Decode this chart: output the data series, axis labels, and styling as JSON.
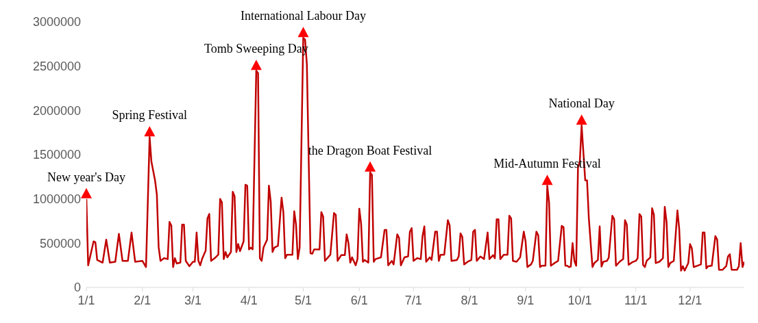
{
  "chart_data": {
    "type": "line",
    "x": [
      "--01-01",
      "--01-02",
      "--01-05",
      "--01-06",
      "--01-07",
      "--01-10",
      "--01-12",
      "--01-14",
      "--01-17",
      "--01-19",
      "--01-21",
      "--01-24",
      "--01-26",
      "--01-28",
      "--02-01",
      "--02-03",
      "--02-05",
      "--02-06",
      "--02-08",
      "--02-09",
      "--02-10",
      "--02-11",
      "--02-13",
      "--02-15",
      "--02-16",
      "--02-17",
      "--02-18",
      "--02-19",
      "--02-20",
      "--02-22",
      "--02-23",
      "--02-24",
      "--02-25",
      "--02-27",
      "--03-01",
      "--03-02",
      "--03-03",
      "--03-04",
      "--03-05",
      "--03-06",
      "--03-08",
      "--03-09",
      "--03-10",
      "--03-11",
      "--03-13",
      "--03-15",
      "--03-16",
      "--03-17",
      "--03-18",
      "--03-19",
      "--03-20",
      "--03-22",
      "--03-23",
      "--03-24",
      "--03-25",
      "--03-26",
      "--03-27",
      "--03-29",
      "--03-30",
      "--03-31",
      "--04-01",
      "--04-02",
      "--04-03",
      "--04-05",
      "--04-06",
      "--04-07",
      "--04-08",
      "--04-09",
      "--04-11",
      "--04-12",
      "--04-13",
      "--04-14",
      "--04-15",
      "--04-17",
      "--04-19",
      "--04-20",
      "--04-21",
      "--04-22",
      "--04-25",
      "--04-26",
      "--04-27",
      "--04-28",
      "--04-29",
      "--05-01",
      "--05-02",
      "--05-03",
      "--05-05",
      "--05-06",
      "--05-07",
      "--05-10",
      "--05-11",
      "--05-12",
      "--05-13",
      "--05-16",
      "--05-18",
      "--05-19",
      "--05-20",
      "--05-22",
      "--05-24",
      "--05-25",
      "--05-26",
      "--05-27",
      "--05-28",
      "--05-30",
      "--05-31",
      "--06-01",
      "--06-02",
      "--06-03",
      "--06-04",
      "--06-06",
      "--06-07",
      "--06-08",
      "--06-09",
      "--06-10",
      "--06-13",
      "--06-15",
      "--06-16",
      "--06-17",
      "--06-19",
      "--06-20",
      "--06-22",
      "--06-23",
      "--06-24",
      "--06-26",
      "--06-28",
      "--06-29",
      "--06-30",
      "--07-01",
      "--07-03",
      "--07-05",
      "--07-06",
      "--07-07",
      "--07-08",
      "--07-10",
      "--07-11",
      "--07-13",
      "--07-14",
      "--07-15",
      "--07-16",
      "--07-18",
      "--07-20",
      "--07-21",
      "--07-22",
      "--07-25",
      "--07-26",
      "--07-27",
      "--07-28",
      "--07-29",
      "--07-31",
      "--08-02",
      "--08-03",
      "--08-04",
      "--08-05",
      "--08-07",
      "--08-09",
      "--08-11",
      "--08-12",
      "--08-14",
      "--08-15",
      "--08-16",
      "--08-17",
      "--08-18",
      "--08-20",
      "--08-22",
      "--08-23",
      "--08-24",
      "--08-25",
      "--08-27",
      "--08-29",
      "--08-31",
      "--09-01",
      "--09-02",
      "--09-04",
      "--09-05",
      "--09-07",
      "--09-08",
      "--09-09",
      "--09-10",
      "--09-12",
      "--09-13",
      "--09-14",
      "--09-15",
      "--09-17",
      "--09-19",
      "--09-21",
      "--09-22",
      "--09-23",
      "--09-24",
      "--09-25",
      "--09-26",
      "--09-27",
      "--09-28",
      "--09-29",
      "--09-30",
      "--10-01",
      "--10-02",
      "--10-04",
      "--10-05",
      "--10-06",
      "--10-08",
      "--10-09",
      "--10-11",
      "--10-12",
      "--10-13",
      "--10-14",
      "--10-16",
      "--10-17",
      "--10-19",
      "--10-20",
      "--10-21",
      "--10-23",
      "--10-25",
      "--10-26",
      "--10-27",
      "--10-28",
      "--10-30",
      "--11-01",
      "--11-02",
      "--11-03",
      "--11-04",
      "--11-05",
      "--11-06",
      "--11-07",
      "--11-09",
      "--11-10",
      "--11-11",
      "--11-12",
      "--11-14",
      "--11-16",
      "--11-17",
      "--11-18",
      "--11-19",
      "--11-20",
      "--11-22",
      "--11-24",
      "--11-25",
      "--11-26",
      "--11-27",
      "--11-28",
      "--11-30",
      "--12-01",
      "--12-02",
      "--12-03",
      "--12-05",
      "--12-07",
      "--12-08",
      "--12-09",
      "--12-10",
      "--12-11",
      "--12-13",
      "--12-15",
      "--12-16",
      "--12-17",
      "--12-19",
      "--12-21",
      "--12-22",
      "--12-23",
      "--12-24",
      "--12-27",
      "--12-28",
      "--12-29",
      "--12-30",
      "--12-31"
    ],
    "series": [
      {
        "color": "#c00000",
        "values": [
          1000000,
          250000,
          520000,
          510000,
          310000,
          280000,
          540000,
          280000,
          290000,
          605000,
          300000,
          300000,
          620000,
          290000,
          300000,
          230000,
          1700000,
          1420000,
          1210000,
          1050000,
          455000,
          300000,
          330000,
          320000,
          740000,
          700000,
          230000,
          330000,
          270000,
          280000,
          710000,
          710000,
          300000,
          240000,
          290000,
          290000,
          620000,
          300000,
          250000,
          320000,
          415000,
          780000,
          830000,
          300000,
          330000,
          370000,
          1000000,
          960000,
          320000,
          400000,
          340000,
          400000,
          1080000,
          1030000,
          400000,
          490000,
          410000,
          520000,
          1160000,
          1150000,
          430000,
          450000,
          430000,
          2450000,
          2420000,
          330000,
          300000,
          450000,
          540000,
          1150000,
          970000,
          400000,
          450000,
          470000,
          1015000,
          850000,
          330000,
          370000,
          370000,
          860000,
          710000,
          320000,
          450000,
          2820000,
          2800000,
          2520000,
          387000,
          380000,
          430000,
          430000,
          850000,
          800000,
          300000,
          370000,
          840000,
          820000,
          300000,
          365000,
          365000,
          600000,
          500000,
          280000,
          340000,
          250000,
          320000,
          890000,
          720000,
          290000,
          310000,
          280000,
          1300000,
          1270000,
          290000,
          320000,
          340000,
          650000,
          650000,
          250000,
          300000,
          260000,
          600000,
          560000,
          250000,
          340000,
          350000,
          630000,
          670000,
          300000,
          330000,
          320000,
          580000,
          690000,
          290000,
          340000,
          310000,
          630000,
          630000,
          300000,
          370000,
          370000,
          760000,
          700000,
          300000,
          310000,
          350000,
          610000,
          570000,
          260000,
          290000,
          310000,
          630000,
          650000,
          300000,
          350000,
          320000,
          620000,
          320000,
          365000,
          330000,
          770000,
          770000,
          320000,
          370000,
          370000,
          810000,
          780000,
          300000,
          290000,
          340000,
          630000,
          520000,
          230000,
          260000,
          300000,
          630000,
          590000,
          230000,
          245000,
          245000,
          1150000,
          960000,
          245000,
          275000,
          300000,
          695000,
          680000,
          245000,
          245000,
          230000,
          235000,
          500000,
          300000,
          245000,
          1355000,
          1420000,
          1830000,
          1210000,
          1210000,
          780000,
          230000,
          275000,
          310000,
          690000,
          235000,
          290000,
          300000,
          335000,
          810000,
          770000,
          245000,
          290000,
          320000,
          760000,
          710000,
          255000,
          285000,
          300000,
          330000,
          830000,
          800000,
          255000,
          230000,
          300000,
          340000,
          895000,
          820000,
          275000,
          290000,
          330000,
          910000,
          740000,
          230000,
          275000,
          300000,
          870000,
          660000,
          190000,
          240000,
          190000,
          275000,
          490000,
          440000,
          230000,
          245000,
          260000,
          620000,
          620000,
          215000,
          240000,
          245000,
          580000,
          540000,
          200000,
          200000,
          240000,
          350000,
          375000,
          200000,
          200000,
          240000,
          500000,
          230000,
          290000
        ]
      }
    ],
    "xlim": [
      "--01-01",
      "--12-31"
    ],
    "xticks": [
      {
        "value": "--01-01",
        "label": "1/1"
      },
      {
        "value": "--02-01",
        "label": "2/1"
      },
      {
        "value": "--03-01",
        "label": "3/1"
      },
      {
        "value": "--04-01",
        "label": "4/1"
      },
      {
        "value": "--05-01",
        "label": "5/1"
      },
      {
        "value": "--06-01",
        "label": "6/1"
      },
      {
        "value": "--07-01",
        "label": "7/1"
      },
      {
        "value": "--08-01",
        "label": "8/1"
      },
      {
        "value": "--09-01",
        "label": "9/1"
      },
      {
        "value": "--10-01",
        "label": "10/1"
      },
      {
        "value": "--11-01",
        "label": "11/1"
      },
      {
        "value": "--12-01",
        "label": "12/1"
      }
    ],
    "ylim": [
      0,
      3000000
    ],
    "yticks": [
      0,
      500000,
      1000000,
      1500000,
      2000000,
      2500000,
      3000000
    ],
    "grid": false,
    "legend": false,
    "marker": "none",
    "line_style": "solid",
    "annotations": [
      {
        "text": "New year's Day",
        "x": "--01-01",
        "y": 1000000
      },
      {
        "text": "Spring Festival",
        "x": "--02-05",
        "y": 1700000
      },
      {
        "text": "Tomb Sweeping Day",
        "x": "--04-05",
        "y": 2450000
      },
      {
        "text": "International Labour Day",
        "x": "--05-01",
        "y": 2820000
      },
      {
        "text": "the Dragon Boat Festival",
        "x": "--06-07",
        "y": 1300000
      },
      {
        "text": "Mid-Autumn Festival",
        "x": "--09-13",
        "y": 1150000
      },
      {
        "text": "National Day",
        "x": "--10-02",
        "y": 1830000
      }
    ]
  }
}
